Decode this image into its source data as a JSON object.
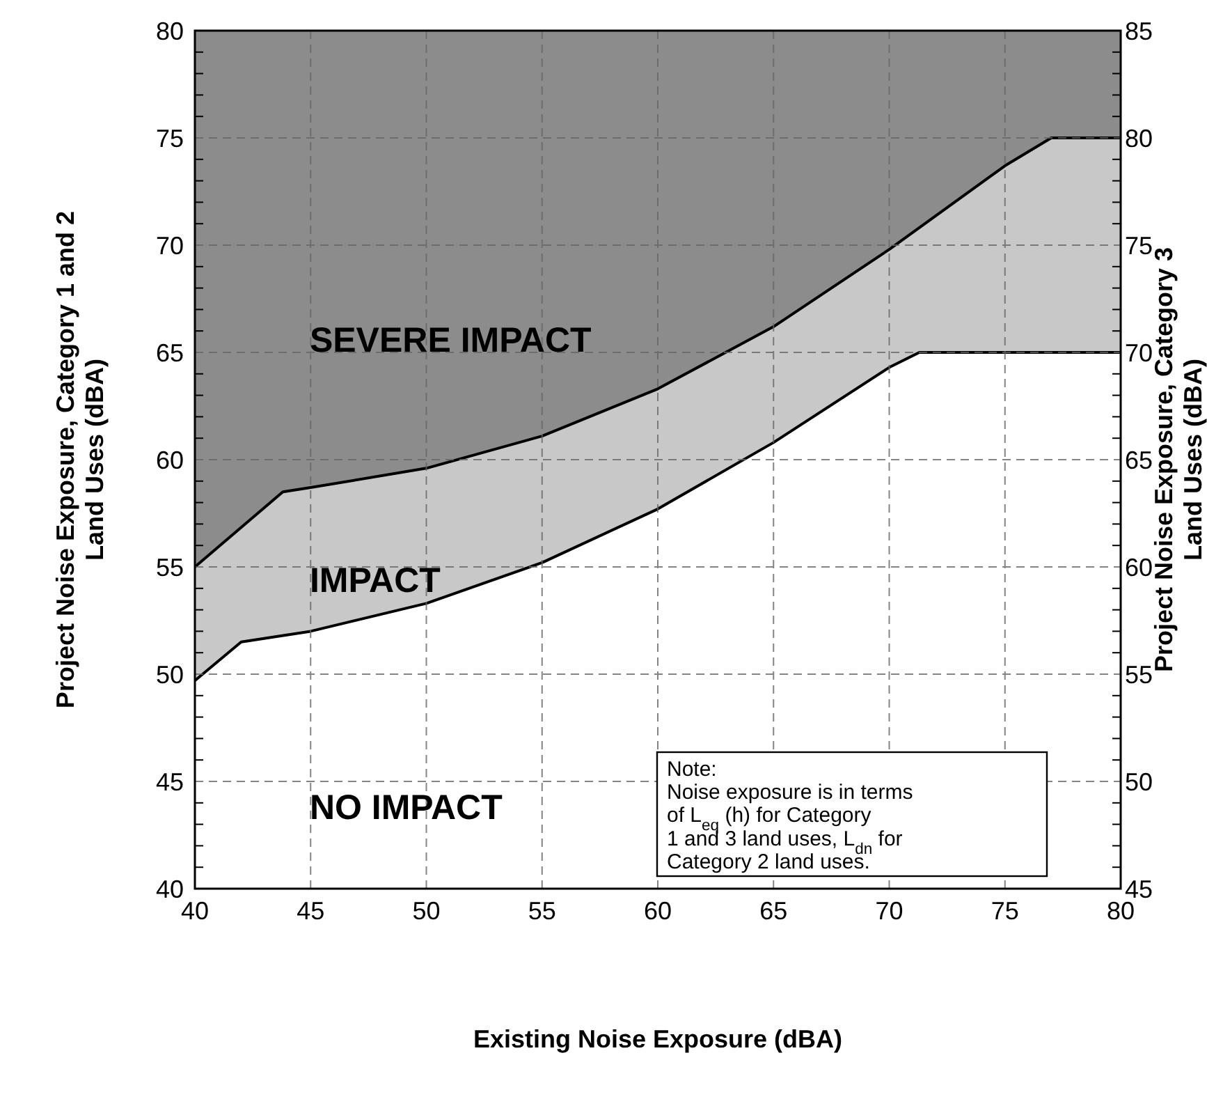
{
  "chart_data": {
    "type": "area",
    "xlabel": "Existing Noise Exposure (dBA)",
    "ylabel": "Project Noise Exposure, Category 1 and 2\nLand Uses (dBA)",
    "y2label": "Project Noise Exposure, Category 3\nLand Uses (dBA)",
    "xlim": [
      40,
      80
    ],
    "xticks": [
      40,
      45,
      50,
      55,
      60,
      65,
      70,
      75,
      80
    ],
    "ylim": [
      40,
      80
    ],
    "yticks": [
      40,
      {
        "value": 41,
        "label": null
      },
      {
        "value": 42,
        "label": null
      },
      {
        "value": 43,
        "label": null
      },
      {
        "value": 44,
        "label": null
      },
      45,
      {
        "value": 46,
        "label": null
      },
      {
        "value": 47,
        "label": null
      },
      {
        "value": 48,
        "label": null
      },
      {
        "value": 49,
        "label": null
      },
      50,
      {
        "value": 51,
        "label": null
      },
      {
        "value": 52,
        "label": null
      },
      {
        "value": 53,
        "label": null
      },
      {
        "value": 54,
        "label": null
      },
      55,
      {
        "value": 56,
        "label": null
      },
      {
        "value": 57,
        "label": null
      },
      {
        "value": 58,
        "label": null
      },
      {
        "value": 59,
        "label": null
      },
      60,
      {
        "value": 61,
        "label": null
      },
      {
        "value": 62,
        "label": null
      },
      {
        "value": 63,
        "label": null
      },
      {
        "value": 64,
        "label": null
      },
      65,
      {
        "value": 66,
        "label": null
      },
      {
        "value": 67,
        "label": null
      },
      {
        "value": 68,
        "label": null
      },
      {
        "value": 69,
        "label": null
      },
      70,
      {
        "value": 71,
        "label": null
      },
      {
        "value": 72,
        "label": null
      },
      {
        "value": 73,
        "label": null
      },
      {
        "value": 74,
        "label": null
      },
      75,
      {
        "value": 76,
        "label": null
      },
      {
        "value": 77,
        "label": null
      },
      {
        "value": 78,
        "label": null
      },
      {
        "value": 79,
        "label": null
      },
      80
    ],
    "y2lim": [
      45,
      85
    ],
    "y2ticks": [
      45,
      {
        "value": 46,
        "label": null
      },
      {
        "value": 47,
        "label": null
      },
      {
        "value": 48,
        "label": null
      },
      {
        "value": 49,
        "label": null
      },
      50,
      {
        "value": 51,
        "label": null
      },
      {
        "value": 52,
        "label": null
      },
      {
        "value": 53,
        "label": null
      },
      {
        "value": 54,
        "label": null
      },
      55,
      {
        "value": 56,
        "label": null
      },
      {
        "value": 57,
        "label": null
      },
      {
        "value": 58,
        "label": null
      },
      {
        "value": 59,
        "label": null
      },
      60,
      {
        "value": 61,
        "label": null
      },
      {
        "value": 62,
        "label": null
      },
      {
        "value": 63,
        "label": null
      },
      {
        "value": 64,
        "label": null
      },
      65,
      {
        "value": 66,
        "label": null
      },
      {
        "value": 67,
        "label": null
      },
      {
        "value": 68,
        "label": null
      },
      {
        "value": 69,
        "label": null
      },
      70,
      {
        "value": 71,
        "label": null
      },
      {
        "value": 72,
        "label": null
      },
      {
        "value": 73,
        "label": null
      },
      {
        "value": 74,
        "label": null
      },
      75,
      {
        "value": 76,
        "label": null
      },
      {
        "value": 77,
        "label": null
      },
      {
        "value": 78,
        "label": null
      },
      {
        "value": 79,
        "label": null
      },
      80,
      {
        "value": 81,
        "label": null
      },
      {
        "value": 82,
        "label": null
      },
      {
        "value": 83,
        "label": null
      },
      {
        "value": 84,
        "label": null
      },
      85
    ],
    "grid": true,
    "bands": [
      {
        "axis": "y",
        "from": 40,
        "to": 80,
        "color": "#8c8c8c",
        "label": "SEVERE IMPACT"
      }
    ],
    "series": [
      {
        "name": "NO IMPACT",
        "color": "#ffffff",
        "x": [
          40,
          42,
          45,
          50,
          55,
          60,
          65,
          70,
          71.3,
          80
        ],
        "values": [
          49.7,
          51.5,
          52.0,
          53.3,
          55.2,
          57.7,
          60.8,
          64.3,
          65,
          65
        ]
      },
      {
        "name": "IMPACT",
        "color": "#c8c8c8",
        "x": [
          40,
          43.8,
          45,
          50,
          55,
          60,
          65,
          70,
          75,
          77,
          80
        ],
        "values": [
          55,
          58.5,
          58.7,
          59.6,
          61.1,
          63.3,
          66.2,
          69.8,
          73.7,
          75,
          75
        ]
      }
    ],
    "annotations": [
      "Note:\nNoise exposure is in terms\nof L$_{eq}$ (h) for Category\n1 and 3 land uses, L$_{dn}$  for\nCategory 2 land uses."
    ]
  }
}
